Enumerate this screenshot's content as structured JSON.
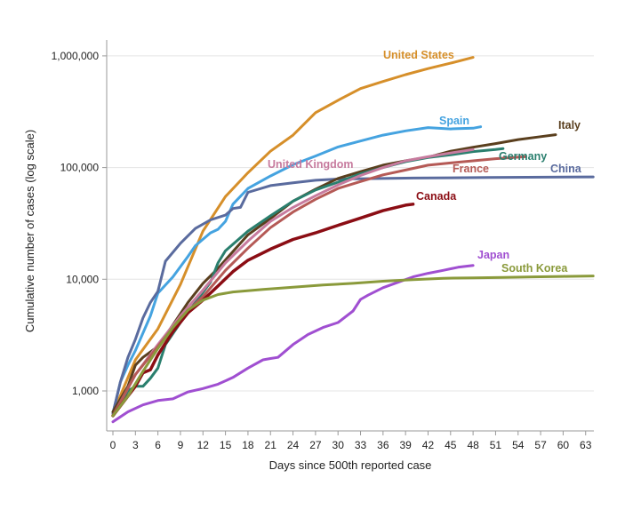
{
  "chart_data": {
    "type": "line",
    "title": "",
    "xlabel": "Days since 500th reported case",
    "ylabel": "Cumulative number of cases (log scale)",
    "yscale": "log",
    "xlim": [
      0,
      64
    ],
    "ylim": [
      400,
      1300000
    ],
    "x_ticks": [
      0,
      3,
      6,
      9,
      12,
      15,
      18,
      21,
      24,
      27,
      30,
      33,
      36,
      39,
      42,
      45,
      48,
      51,
      54,
      57,
      60,
      63
    ],
    "y_ticks": [
      {
        "value": 1000,
        "label": "1,000"
      },
      {
        "value": 10000,
        "label": "10,000"
      },
      {
        "value": 100000,
        "label": "100,000"
      },
      {
        "value": 1000000,
        "label": "1,000,000"
      }
    ],
    "grid": "horizontal",
    "legend": "inline-labels",
    "series": [
      {
        "name": "United States",
        "color": "#D68F2A",
        "x": [
          0,
          3,
          6,
          9,
          12,
          15,
          18,
          21,
          24,
          27,
          30,
          33,
          36,
          39,
          42,
          45,
          48
        ],
        "y": [
          630,
          1900,
          3600,
          9000,
          27000,
          55000,
          90000,
          140000,
          195000,
          310000,
          400000,
          510000,
          590000,
          680000,
          770000,
          860000,
          970000
        ]
      },
      {
        "name": "Spain",
        "color": "#45A3E0",
        "x": [
          0,
          1,
          2,
          3,
          5,
          6,
          8,
          10,
          11,
          13,
          14,
          15,
          16,
          18,
          21,
          24,
          27,
          30,
          33,
          36,
          39,
          42,
          45,
          46,
          48,
          49
        ],
        "y": [
          630,
          1200,
          1700,
          2300,
          4700,
          7500,
          10500,
          16000,
          20000,
          26000,
          28000,
          33000,
          47000,
          65000,
          84000,
          106000,
          127000,
          153000,
          173000,
          195000,
          213000,
          228000,
          222000,
          223000,
          225000,
          232000
        ]
      },
      {
        "name": "China",
        "color": "#5A6B9E",
        "x": [
          0,
          1,
          2,
          3,
          4,
          5,
          6,
          7,
          9,
          11,
          13,
          15,
          16,
          17,
          18,
          21,
          24,
          27,
          30,
          40,
          50,
          64
        ],
        "y": [
          630,
          1200,
          2000,
          2900,
          4500,
          6200,
          7800,
          14500,
          21000,
          28500,
          34000,
          37500,
          43000,
          44000,
          60000,
          69000,
          73000,
          77000,
          79000,
          80500,
          81500,
          82500
        ]
      },
      {
        "name": "Italy",
        "color": "#5A3F1E",
        "x": [
          0,
          2,
          3,
          4,
          6,
          8,
          10,
          12,
          14,
          16,
          18,
          21,
          24,
          27,
          30,
          33,
          36,
          39,
          42,
          45,
          48,
          51,
          54,
          57,
          59
        ],
        "y": [
          650,
          1100,
          1700,
          2000,
          2500,
          3900,
          6200,
          9200,
          12500,
          17700,
          25000,
          35000,
          50000,
          64000,
          80000,
          92000,
          105000,
          115000,
          124000,
          140000,
          152000,
          164000,
          178000,
          189000,
          197000
        ]
      },
      {
        "name": "Germany",
        "color": "#2A7F6E",
        "x": [
          0,
          2,
          3,
          4,
          5,
          6,
          7,
          9,
          11,
          13,
          14,
          15,
          18,
          21,
          24,
          27,
          30,
          33,
          36,
          39,
          42,
          45,
          48,
          51,
          52
        ],
        "y": [
          600,
          1000,
          1100,
          1100,
          1300,
          1600,
          2600,
          4100,
          6200,
          9400,
          14000,
          18000,
          27000,
          37000,
          50000,
          63000,
          74000,
          88000,
          100000,
          113000,
          123000,
          130000,
          139000,
          145000,
          148000
        ]
      },
      {
        "name": "United Kingdom",
        "color": "#C77B9E",
        "x": [
          0,
          3,
          6,
          9,
          12,
          15,
          18,
          21,
          24,
          27,
          30,
          33,
          36,
          39,
          42,
          45,
          48
        ],
        "y": [
          600,
          1400,
          2600,
          4700,
          8000,
          14000,
          22000,
          33000,
          44000,
          56000,
          70000,
          85000,
          100000,
          115000,
          125000,
          135000,
          145000
        ]
      },
      {
        "name": "France",
        "color": "#B55A56",
        "x": [
          0,
          3,
          6,
          9,
          12,
          15,
          18,
          21,
          24,
          27,
          30,
          33,
          36,
          39,
          42,
          45,
          48,
          51,
          54,
          55
        ],
        "y": [
          600,
          1400,
          2500,
          4500,
          7000,
          12000,
          19000,
          29000,
          40000,
          52000,
          65000,
          75000,
          86000,
          95000,
          105000,
          110000,
          115000,
          120000,
          124000,
          125000
        ]
      },
      {
        "name": "Canada",
        "color": "#8B0D14",
        "x": [
          0,
          2,
          3,
          4,
          5,
          6,
          8,
          10,
          12,
          14,
          16,
          18,
          21,
          24,
          27,
          30,
          33,
          36,
          39,
          40
        ],
        "y": [
          600,
          900,
          1100,
          1450,
          1550,
          2100,
          3400,
          5000,
          6500,
          8700,
          11700,
          14800,
          18600,
          22700,
          26000,
          30400,
          35300,
          41100,
          46100,
          47000
        ]
      },
      {
        "name": "Japan",
        "color": "#A04FD1",
        "x": [
          0,
          2,
          4,
          6,
          8,
          10,
          12,
          14,
          16,
          18,
          20,
          21,
          22,
          24,
          26,
          28,
          30,
          32,
          33,
          34,
          36,
          38,
          40,
          42,
          44,
          46,
          48
        ],
        "y": [
          530,
          650,
          750,
          820,
          850,
          980,
          1050,
          1150,
          1320,
          1600,
          1900,
          1950,
          2000,
          2600,
          3200,
          3700,
          4100,
          5200,
          6600,
          7200,
          8400,
          9400,
          10500,
          11300,
          12000,
          12800,
          13300
        ]
      },
      {
        "name": "South Korea",
        "color": "#8A9A3B",
        "x": [
          0,
          2,
          4,
          6,
          8,
          10,
          12,
          14,
          16,
          20,
          24,
          28,
          32,
          36,
          40,
          44,
          48,
          52,
          56,
          60,
          64
        ],
        "y": [
          600,
          900,
          1500,
          2400,
          3700,
          5300,
          6500,
          7300,
          7700,
          8100,
          8500,
          8900,
          9200,
          9600,
          9900,
          10200,
          10300,
          10400,
          10500,
          10600,
          10700
        ]
      }
    ],
    "labels": [
      {
        "series": "United States",
        "text": "United States"
      },
      {
        "series": "Spain",
        "text": "Spain"
      },
      {
        "series": "Italy",
        "text": "Italy"
      },
      {
        "series": "Germany",
        "text": "Germany"
      },
      {
        "series": "United Kingdom",
        "text": "United Kingdom"
      },
      {
        "series": "France",
        "text": "France"
      },
      {
        "series": "China",
        "text": "China"
      },
      {
        "series": "Canada",
        "text": "Canada"
      },
      {
        "series": "Japan",
        "text": "Japan"
      },
      {
        "series": "South Korea",
        "text": "South Korea"
      }
    ]
  }
}
